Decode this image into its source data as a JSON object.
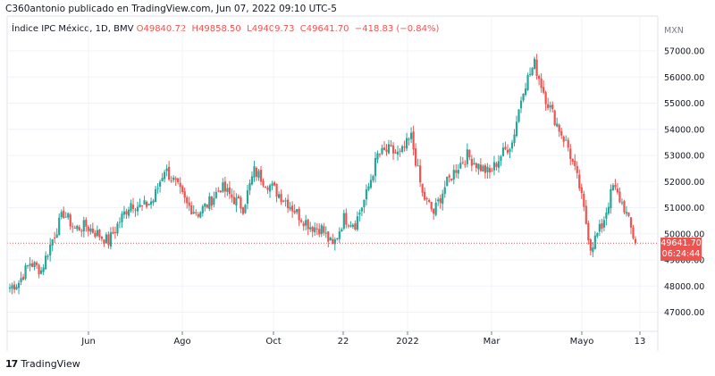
{
  "header": {
    "publisher": "C360antonio publicado en TradingView.com, Jun 07, 2022 09:10 UTC-5"
  },
  "legend": {
    "symbol": "Índice IPC México, 1D, BMV",
    "open": "O49840.72",
    "high": "H49858.50",
    "low": "L49409.73",
    "close": "C49641.70",
    "change": "−418.83 (−0.84%)"
  },
  "price_badge": {
    "price": "49641.70",
    "countdown": "06:24:44"
  },
  "footer": {
    "brand": "TradingView"
  },
  "colors": {
    "up": "#26a69a",
    "down": "#ef5350",
    "grid": "#f0f3fa",
    "axis": "#787b86"
  },
  "chart_data": {
    "type": "candlestick",
    "currency_label": "MXN",
    "ylim": [
      46300,
      58300
    ],
    "y_ticks": [
      "47000.00",
      "48000.00",
      "49000.00",
      "50000.00",
      "51000.00",
      "52000.00",
      "53000.00",
      "54000.00",
      "55000.00",
      "56000.00",
      "57000.00"
    ],
    "x_ticks": [
      "Jun",
      "Ago",
      "Oct",
      "22",
      "2022",
      "Mar",
      "Mayo",
      "13"
    ],
    "last_price": 49641.7,
    "series": [
      {
        "date": "May 17",
        "close": 48150
      },
      {
        "date": "May 24",
        "close": 48900
      },
      {
        "date": "May 31",
        "close": 48600
      },
      {
        "date": "Jun 07",
        "close": 49800
      },
      {
        "date": "Jun 14",
        "close": 50800
      },
      {
        "date": "Jun 21",
        "close": 50200
      },
      {
        "date": "Jun 28",
        "close": 50300
      },
      {
        "date": "Jul 05",
        "close": 50000
      },
      {
        "date": "Jul 12",
        "close": 49700
      },
      {
        "date": "Jul 19",
        "close": 50500
      },
      {
        "date": "Jul 26",
        "close": 51200
      },
      {
        "date": "Aug 02",
        "close": 51000
      },
      {
        "date": "Aug 09",
        "close": 51300
      },
      {
        "date": "Aug 16",
        "close": 52500
      },
      {
        "date": "Aug 23",
        "close": 51900
      },
      {
        "date": "Aug 30",
        "close": 51100
      },
      {
        "date": "Sep 06",
        "close": 50800
      },
      {
        "date": "Sep 13",
        "close": 51200
      },
      {
        "date": "Sep 20",
        "close": 51800
      },
      {
        "date": "Sep 27",
        "close": 51400
      },
      {
        "date": "Oct 04",
        "close": 51000
      },
      {
        "date": "Oct 11",
        "close": 52400
      },
      {
        "date": "Oct 18",
        "close": 52000
      },
      {
        "date": "Oct 25",
        "close": 51600
      },
      {
        "date": "Nov 01",
        "close": 51200
      },
      {
        "date": "Nov 08",
        "close": 50700
      },
      {
        "date": "Nov 15",
        "close": 50300
      },
      {
        "date": "Nov 22",
        "close": 50200
      },
      {
        "date": "Nov 29",
        "close": 49500
      },
      {
        "date": "Dec 06",
        "close": 50600
      },
      {
        "date": "Dec 13",
        "close": 50400
      },
      {
        "date": "Dec 20",
        "close": 51500
      },
      {
        "date": "Dec 27",
        "close": 53000
      },
      {
        "date": "Jan 03",
        "close": 53200
      },
      {
        "date": "Jan 10",
        "close": 53000
      },
      {
        "date": "Jan 17",
        "close": 53700
      },
      {
        "date": "Jan 24",
        "close": 51500
      },
      {
        "date": "Jan 31",
        "close": 50800
      },
      {
        "date": "Feb 07",
        "close": 51800
      },
      {
        "date": "Feb 14",
        "close": 52500
      },
      {
        "date": "Feb 21",
        "close": 53000
      },
      {
        "date": "Feb 28",
        "close": 52600
      },
      {
        "date": "Mar 07",
        "close": 52300
      },
      {
        "date": "Mar 14",
        "close": 53000
      },
      {
        "date": "Mar 21",
        "close": 53500
      },
      {
        "date": "Mar 28",
        "close": 55600
      },
      {
        "date": "Apr 04",
        "close": 56500
      },
      {
        "date": "Apr 11",
        "close": 55200
      },
      {
        "date": "Apr 18",
        "close": 54200
      },
      {
        "date": "Apr 25",
        "close": 53300
      },
      {
        "date": "May 02",
        "close": 51800
      },
      {
        "date": "May 09",
        "close": 49500
      },
      {
        "date": "May 16",
        "close": 50300
      },
      {
        "date": "May 23",
        "close": 51800
      },
      {
        "date": "May 30",
        "close": 51000
      },
      {
        "date": "Jun 06",
        "close": 49642
      }
    ]
  }
}
